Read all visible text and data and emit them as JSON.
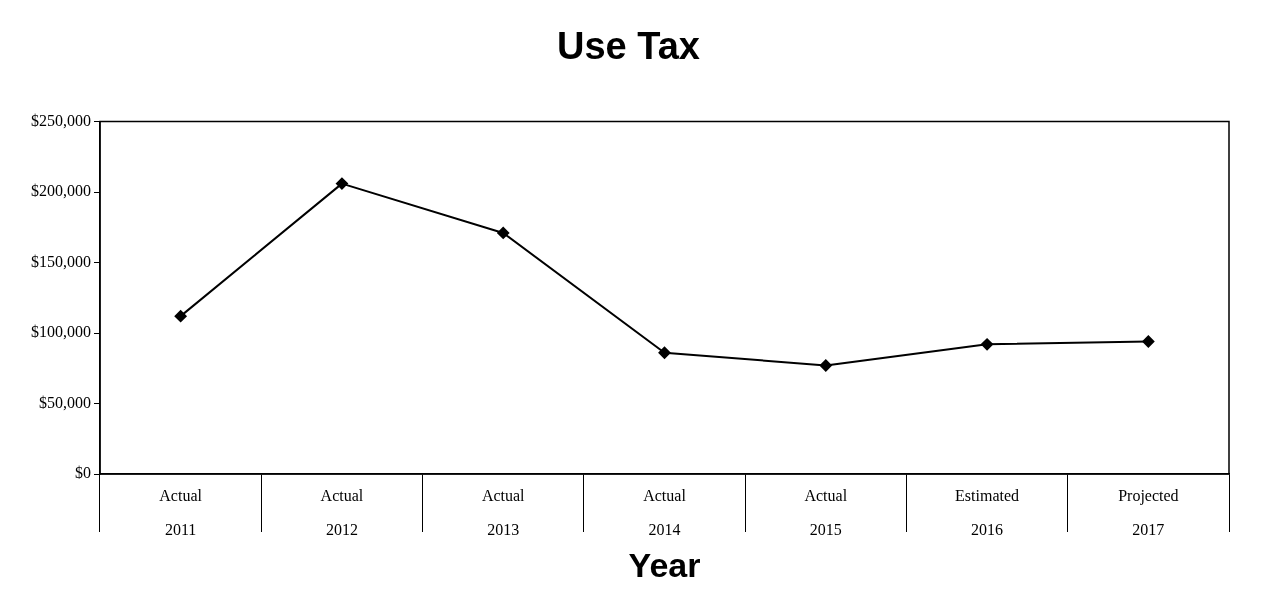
{
  "chart_data": {
    "type": "line",
    "title": "Use Tax",
    "xlabel": "Year",
    "categories": [
      "Actual\n2011",
      "Actual\n2012",
      "Actual\n2013",
      "Actual\n2014",
      "Actual\n2015",
      "Estimated\n2016",
      "Projected\n2017"
    ],
    "series": [
      {
        "color": "#000000",
        "values": [
          112000,
          206000,
          171000,
          86000,
          77000,
          92000,
          94000
        ]
      }
    ],
    "ylim": [
      0,
      250000
    ],
    "yticks": [
      {
        "value": 0,
        "label": "$0"
      },
      {
        "value": 50000,
        "label": "$50,000"
      },
      {
        "value": 100000,
        "label": "$100,000"
      },
      {
        "value": 150000,
        "label": "$150,000"
      },
      {
        "value": 200000,
        "label": "$200,000"
      },
      {
        "value": 250000,
        "label": "$250,000"
      }
    ],
    "grid": false,
    "legend": false,
    "marker": "diamond",
    "line_style": "solid"
  }
}
